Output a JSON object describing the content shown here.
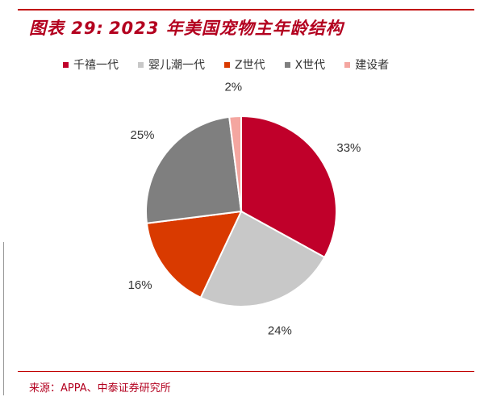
{
  "header": {
    "figure_label": "图表 29:",
    "title": "2023 年美国宠物主年龄结构"
  },
  "chart_data": {
    "type": "pie",
    "title": "2023 年美国宠物主年龄结构",
    "legend_position": "top",
    "slices": [
      {
        "label": "千禧一代",
        "value": 33,
        "display": "33%",
        "color": "#c0002a"
      },
      {
        "label": "婴儿潮一代",
        "value": 24,
        "display": "24%",
        "color": "#c8c8c8"
      },
      {
        "label": "Z世代",
        "value": 16,
        "display": "16%",
        "color": "#d93a00"
      },
      {
        "label": "X世代",
        "value": 25,
        "display": "25%",
        "color": "#7f7f7f"
      },
      {
        "label": "建设者",
        "value": 2,
        "display": "2%",
        "color": "#f4a6a0"
      }
    ]
  },
  "footer": {
    "source": "来源：APPA、中泰证券研究所"
  }
}
